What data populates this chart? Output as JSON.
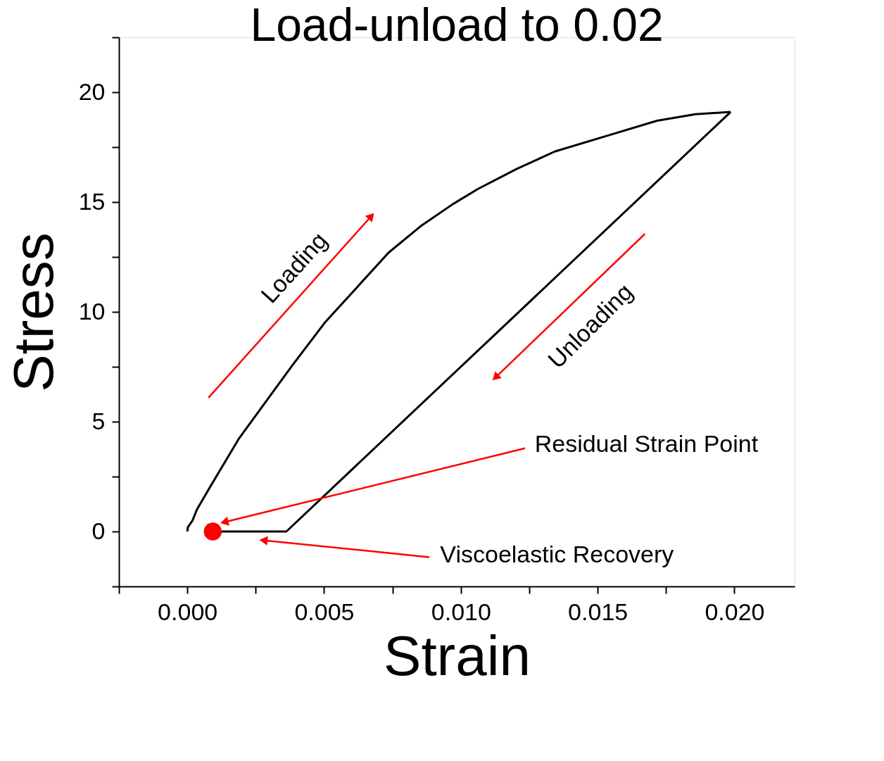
{
  "chart_data": {
    "type": "line",
    "title": "Load-unload to 0.02",
    "xlabel": "Strain",
    "ylabel": "Stress",
    "series": [
      {
        "color": "#000000",
        "x": [
          0,
          2e-05,
          0.00019,
          0.00035,
          0.00082,
          0.00187,
          0.00292,
          0.00386,
          0.00502,
          0.00619,
          0.00736,
          0.00853,
          0.0097,
          0.01063,
          0.01203,
          0.01343,
          0.0153,
          0.01717,
          0.01857,
          0.01986
        ],
        "values": [
          0,
          0.2,
          0.5,
          1.0,
          2.0,
          4.2,
          6.0,
          7.6,
          9.5,
          11.1,
          12.7,
          13.9,
          14.9,
          15.6,
          16.5,
          17.3,
          18.0,
          18.7,
          19.0,
          19.1
        ]
      },
      {
        "color": "#000000",
        "x": [
          0.01986,
          0.00362,
          0.00093
        ],
        "values": [
          19.1,
          0,
          0
        ]
      },
      {
        "type": "scatter",
        "color": "#ff0000",
        "marker": "circle",
        "x": [
          0.00093
        ],
        "values": [
          0
        ]
      }
    ],
    "marker": "none",
    "line_style": "solid",
    "grid": false,
    "xlim": [
      -0.0025,
      0.0222
    ],
    "ylim": [
      -2.5,
      22.5
    ],
    "xticks": [
      {
        "value": -0.0025,
        "label": null
      },
      {
        "value": 0,
        "label": "0.000"
      },
      {
        "value": 0.0025,
        "label": null
      },
      {
        "value": 0.005,
        "label": "0.005"
      },
      {
        "value": 0.0075,
        "label": null
      },
      {
        "value": 0.01,
        "label": "0.010"
      },
      {
        "value": 0.0125,
        "label": null
      },
      {
        "value": 0.015,
        "label": "0.015"
      },
      {
        "value": 0.0175,
        "label": null
      },
      {
        "value": 0.02,
        "label": "0.020"
      }
    ],
    "yticks": [
      {
        "value": -2.5,
        "label": null
      },
      0,
      {
        "value": 2.5,
        "label": null
      },
      5,
      {
        "value": 7.5,
        "label": null
      },
      10,
      {
        "value": 12.5,
        "label": null
      },
      15,
      {
        "value": 17.5,
        "label": null
      },
      20,
      {
        "value": 22.5,
        "label": null
      }
    ],
    "annotations": [
      "Loading",
      "Unloading",
      {
        "text": "Residual Strain Point",
        "x": 0.0014,
        "y": 0.44
      },
      "Viscoelastic Recovery"
    ]
  }
}
